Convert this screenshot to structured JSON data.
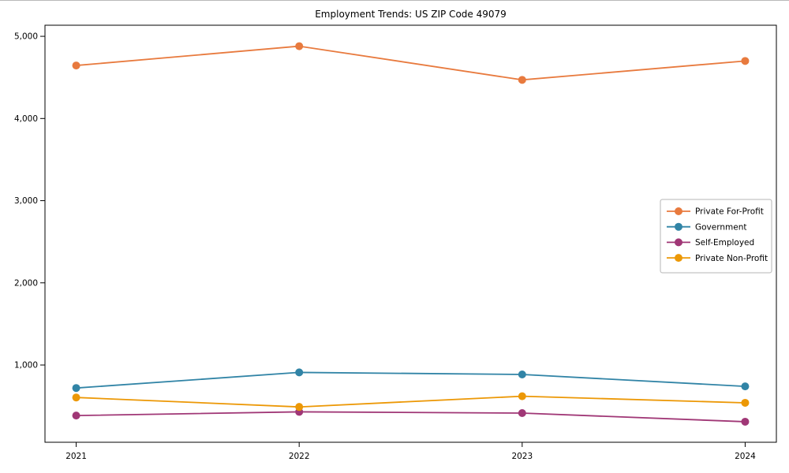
{
  "figure": {
    "title": "Employment Trends: US ZIP Code 49079"
  },
  "chart_data": {
    "type": "line",
    "title": "Employment Trends: US ZIP Code 49079",
    "xlabel": "",
    "ylabel": "",
    "grid": false,
    "legend_position": "center-right",
    "x": [
      2021,
      2022,
      2023,
      2024
    ],
    "x_tick_labels": [
      "2021",
      "2022",
      "2023",
      "2024"
    ],
    "y_ticks": [
      1000,
      2000,
      3000,
      4000,
      5000
    ],
    "y_tick_labels": [
      "1,000",
      "2,000",
      "3,000",
      "4,000",
      "5,000"
    ],
    "ylim": [
      60,
      5135
    ],
    "series": [
      {
        "name": "Private For-Profit",
        "color": "#e87a3e",
        "values": [
          4645,
          4880,
          4470,
          4700
        ]
      },
      {
        "name": "Government",
        "color": "#3184a6",
        "values": [
          720,
          910,
          885,
          740
        ]
      },
      {
        "name": "Self-Employed",
        "color": "#a03776",
        "values": [
          385,
          430,
          415,
          310
        ]
      },
      {
        "name": "Private Non-Profit",
        "color": "#ec9806",
        "values": [
          605,
          490,
          620,
          540
        ]
      }
    ]
  }
}
